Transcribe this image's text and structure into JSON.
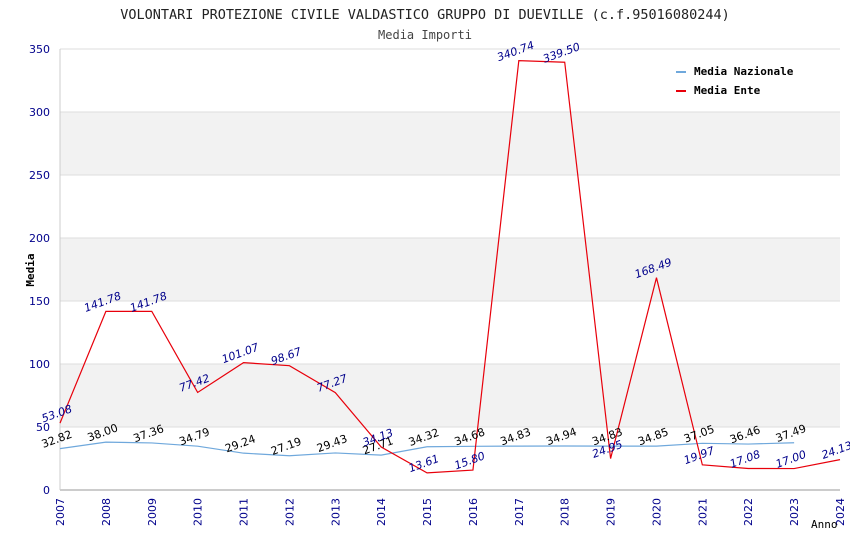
{
  "chart_data": {
    "type": "line",
    "title": "VOLONTARI PROTEZIONE CIVILE VALDASTICO GRUPPO DI DUEVILLE (c.f.95016080244)",
    "subtitle": "Media Importi",
    "xlabel": "Anno",
    "ylabel": "Media",
    "ylim": [
      0,
      350
    ],
    "yticks": [
      0,
      50,
      100,
      150,
      200,
      250,
      300,
      350
    ],
    "grid": true,
    "legend_position": "top-right",
    "x": [
      "2007",
      "2008",
      "2009",
      "2010",
      "2011",
      "2012",
      "2013",
      "2014",
      "2015",
      "2016",
      "2017",
      "2018",
      "2019",
      "2020",
      "2021",
      "2022",
      "2023",
      "2024"
    ],
    "series": [
      {
        "name": "Media Nazionale",
        "color": "#6fa8dc",
        "label_color": "#000000",
        "values": [
          32.82,
          38.0,
          37.36,
          34.79,
          29.24,
          27.19,
          29.43,
          27.71,
          34.32,
          34.68,
          34.83,
          34.94,
          34.83,
          34.85,
          37.05,
          36.46,
          37.49,
          null
        ],
        "labels": [
          "32.82",
          "38.00",
          "37.36",
          "34.79",
          "29.24",
          "27.19",
          "29.43",
          "27.71",
          "34.32",
          "34.68",
          "34.83",
          "34.94",
          "34.83",
          "34.85",
          "37.05",
          "36.46",
          "37.49",
          null
        ]
      },
      {
        "name": "Media Ente",
        "color": "#e8000b",
        "label_color": "#00008b",
        "values": [
          53.08,
          141.78,
          141.78,
          77.42,
          101.07,
          98.67,
          77.27,
          34.13,
          13.61,
          15.8,
          340.74,
          339.5,
          24.95,
          168.49,
          19.97,
          17.08,
          17.0,
          24.13
        ],
        "labels": [
          "53.08",
          "141.78",
          "141.78",
          "77.42",
          "101.07",
          "98.67",
          "77.27",
          "34.13",
          "13.61",
          "15.80",
          "340.74",
          "339.50",
          "24.95",
          "168.49",
          "19.97",
          "17.08",
          "17.00",
          "24.13"
        ]
      }
    ]
  },
  "colors": {
    "axis_text": "#00008b",
    "band": "#f2f2f2",
    "grid": "#dddddd"
  }
}
